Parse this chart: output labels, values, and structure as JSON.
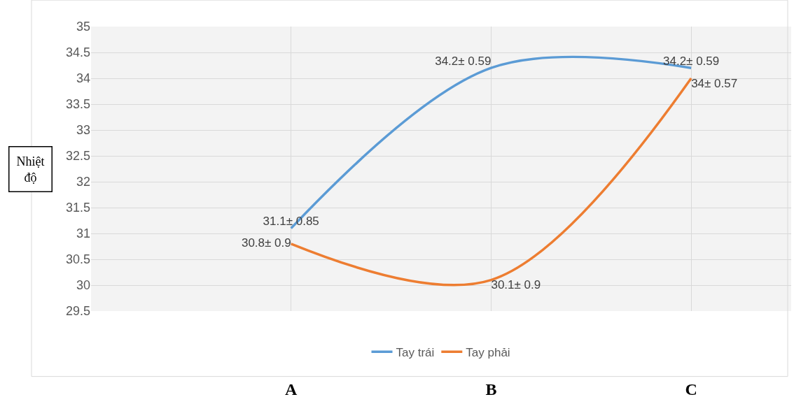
{
  "chart_data": {
    "type": "line",
    "ylabel": "Nhiệt độ",
    "categories": [
      "A",
      "B",
      "C"
    ],
    "series": [
      {
        "name": "Tay trái",
        "color": "#5b9bd5",
        "values": [
          31.1,
          34.2,
          34.2
        ],
        "value_labels": [
          "31.1± 0.85",
          "34.2± 0.59",
          "34.2± 0.59"
        ]
      },
      {
        "name": "Tay phải",
        "color": "#ed7d31",
        "values": [
          30.8,
          30.1,
          34
        ],
        "value_labels": [
          "30.8± 0.9",
          "30.1± 0.9",
          "34± 0.57"
        ]
      }
    ],
    "ylim": [
      29.5,
      35
    ],
    "yticks": [
      29.5,
      30,
      30.5,
      31,
      31.5,
      32,
      32.5,
      33,
      33.5,
      34,
      34.5,
      35
    ],
    "grid": true,
    "legend": "bottom",
    "marker": "none",
    "line_style": "solid"
  }
}
